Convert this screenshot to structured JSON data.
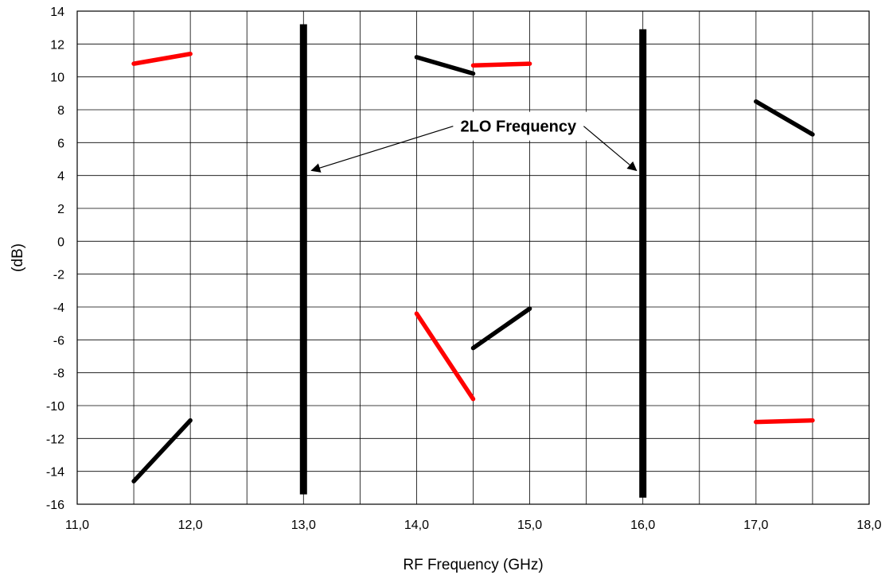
{
  "chart_data": {
    "type": "line",
    "title": "",
    "xlabel": "RF Frequency (GHz)",
    "ylabel": "(dB)",
    "xlim": [
      11.0,
      18.0
    ],
    "ylim": [
      -16,
      14
    ],
    "grid": true,
    "x_minor_step": 0.5,
    "x_ticks": [
      11.0,
      12.0,
      13.0,
      14.0,
      15.0,
      16.0,
      17.0,
      18.0
    ],
    "x_tick_labels": [
      "11,0",
      "12,0",
      "13,0",
      "14,0",
      "15,0",
      "16,0",
      "17,0",
      "18,0"
    ],
    "y_ticks": [
      -16,
      -14,
      -12,
      -10,
      -8,
      -6,
      -4,
      -2,
      0,
      2,
      4,
      6,
      8,
      10,
      12,
      14
    ],
    "y_tick_labels": [
      "-16",
      "-14",
      "-12",
      "-10",
      "-8",
      "-6",
      "-4",
      "-2",
      "0",
      "2",
      "4",
      "6",
      "8",
      "10",
      "12",
      "14"
    ],
    "series": [
      {
        "color": "#ff0000",
        "points": [
          [
            11.5,
            10.8
          ],
          [
            12.0,
            11.4
          ]
        ]
      },
      {
        "color": "#000000",
        "points": [
          [
            11.5,
            -14.6
          ],
          [
            12.0,
            -10.9
          ]
        ]
      },
      {
        "color": "#000000",
        "points": [
          [
            14.0,
            11.2
          ],
          [
            14.5,
            10.2
          ]
        ]
      },
      {
        "color": "#ff0000",
        "points": [
          [
            14.5,
            10.7
          ],
          [
            15.0,
            10.8
          ]
        ]
      },
      {
        "color": "#ff0000",
        "points": [
          [
            14.0,
            -4.4
          ],
          [
            14.5,
            -9.6
          ]
        ]
      },
      {
        "color": "#000000",
        "points": [
          [
            14.5,
            -6.5
          ],
          [
            15.0,
            -4.1
          ]
        ]
      },
      {
        "color": "#000000",
        "points": [
          [
            17.0,
            8.5
          ],
          [
            17.5,
            6.5
          ]
        ]
      },
      {
        "color": "#ff0000",
        "points": [
          [
            17.0,
            -11.0
          ],
          [
            17.5,
            -10.9
          ]
        ]
      }
    ],
    "vertical_markers": [
      {
        "x": 13.0,
        "y_range": [
          -15.4,
          13.2
        ],
        "color": "#000000"
      },
      {
        "x": 16.0,
        "y_range": [
          -15.6,
          12.9
        ],
        "color": "#000000"
      }
    ],
    "annotation": {
      "text": "2LO Frequency",
      "position": [
        14.9,
        7.0
      ],
      "arrows": [
        {
          "to": [
            13.0,
            4.3
          ]
        },
        {
          "to": [
            16.0,
            4.3
          ]
        }
      ]
    }
  }
}
